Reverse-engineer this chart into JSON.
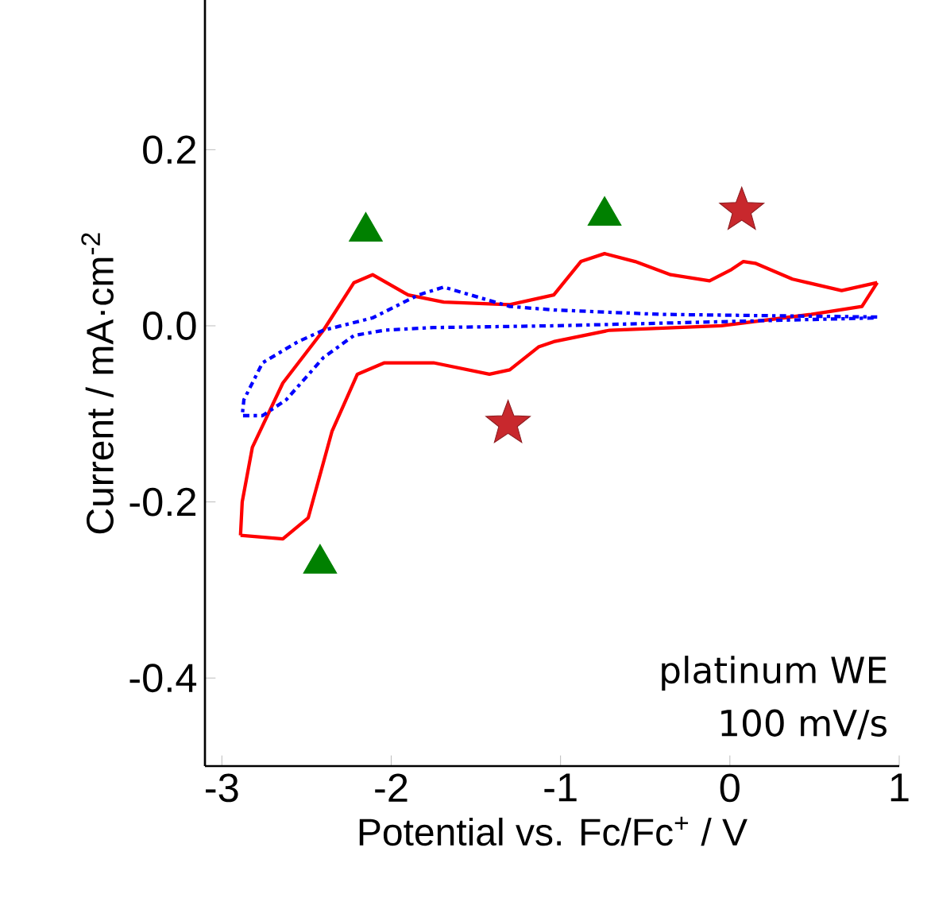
{
  "chart_data": {
    "type": "line",
    "xlabel": "Potential vs. Fc/Fc$^{+}$ /  V",
    "ylabel": "Current / mA·cm$^{-2}$",
    "annotations": [
      "platinum WE",
      "100 mV/s"
    ],
    "xlim": [
      -3.1,
      1.0
    ],
    "ylim": [
      -0.5,
      0.37
    ],
    "xticks": [
      -3,
      -2,
      -1,
      0,
      1
    ],
    "yticks": [
      -0.4,
      -0.2,
      {
        "value": 0,
        "label": "0.0"
      },
      0.2
    ],
    "grid": false,
    "series": [
      {
        "color": "#ff0000",
        "line_style": "solid",
        "x": [
          0.87,
          0.66,
          0.37,
          0.15,
          0.08,
          0.01,
          -0.12,
          -0.35,
          -0.56,
          -0.74,
          -0.88,
          -1.04,
          -1.3,
          -1.69,
          -1.9,
          -2.11,
          -2.22,
          -2.4,
          -2.64,
          -2.82,
          -2.88,
          -2.89
        ],
        "values": [
          0.049,
          0.04,
          0.053,
          0.071,
          0.073,
          0.064,
          0.051,
          0.058,
          0.073,
          0.082,
          0.073,
          0.035,
          0.024,
          0.027,
          0.035,
          0.058,
          0.049,
          -0.005,
          -0.065,
          -0.138,
          -0.2,
          -0.238
        ]
      },
      {
        "color": "#ff0000",
        "line_style": "solid",
        "x": [
          -2.89,
          -2.64,
          -2.49,
          -2.35,
          -2.2,
          -2.04,
          -1.75,
          -1.42,
          -1.3,
          -1.13,
          -1.04,
          -0.71,
          -0.05,
          0.48,
          0.78,
          0.87
        ],
        "values": [
          -0.238,
          -0.242,
          -0.218,
          -0.12,
          -0.055,
          -0.042,
          -0.042,
          -0.055,
          -0.05,
          -0.024,
          -0.018,
          -0.005,
          0.0,
          0.013,
          0.022,
          0.049
        ]
      },
      {
        "color": "#0000ff",
        "line_style": "dashdot",
        "x": [
          0.87,
          -0.41,
          -1.04,
          -1.3,
          -1.69,
          -1.84,
          -2.11,
          -2.4,
          -2.55,
          -2.76,
          -2.87,
          -2.88,
          -2.76,
          -2.62,
          -2.4,
          -2.22,
          -2.04,
          -1.75,
          -1.04,
          0.87
        ],
        "values": [
          0.01,
          0.013,
          0.018,
          0.022,
          0.044,
          0.035,
          0.009,
          -0.005,
          -0.018,
          -0.042,
          -0.084,
          -0.102,
          -0.102,
          -0.084,
          -0.036,
          -0.011,
          -0.005,
          -0.002,
          0.0,
          0.009
        ]
      },
      {
        "type": "scatter",
        "color": "#008000",
        "marker": "triangle",
        "x": [
          -2.15,
          -0.74,
          -2.42
        ],
        "values": [
          0.107,
          0.125,
          -0.27
        ]
      },
      {
        "type": "scatter",
        "color": "#c8282d",
        "marker": "star",
        "x": [
          0.07,
          -1.31
        ],
        "values": [
          0.131,
          -0.111
        ]
      }
    ]
  }
}
